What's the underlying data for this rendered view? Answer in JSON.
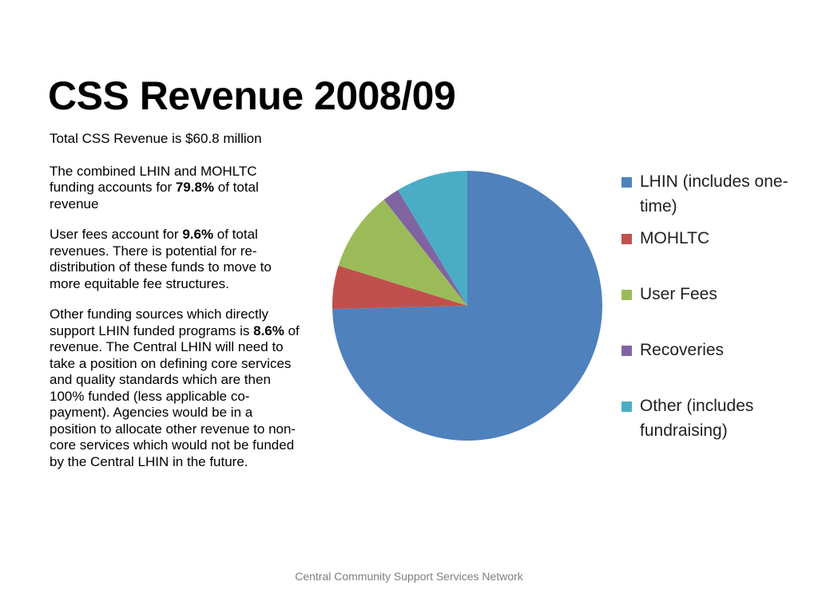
{
  "slide": {
    "title": "CSS Revenue 2008/09",
    "paragraphs": [
      [
        {
          "t": "Total CSS Revenue is $60.8 million",
          "b": false
        }
      ],
      [
        {
          "t": "The combined LHIN and MOHLTC funding accounts for ",
          "b": false
        },
        {
          "t": "79.8%",
          "b": true
        },
        {
          "t": " of total revenue",
          "b": false
        }
      ],
      [
        {
          "t": "User fees account for ",
          "b": false
        },
        {
          "t": "9.6%",
          "b": true
        },
        {
          "t": " of total revenues.  There is potential for re-distribution of these funds to move to more equitable fee structures.",
          "b": false
        }
      ],
      [
        {
          "t": "Other funding sources which directly support LHIN funded programs is ",
          "b": false
        },
        {
          "t": "8.6%",
          "b": true
        },
        {
          "t": " of revenue.  The Central LHIN will need to take a position on defining core services and  quality standards which are then 100% funded (less applicable co-payment).   Agencies would be in a position to allocate other revenue to non-core services which would not be funded by the Central LHIN in the future.",
          "b": false
        }
      ]
    ],
    "footer": "Central Community Support Services Network"
  },
  "chart_data": {
    "type": "pie",
    "title": "",
    "legend_position": "right",
    "start_angle_deg": 0,
    "direction": "clockwise",
    "slices": [
      {
        "label": "LHIN (includes one-time)",
        "value": 74.6,
        "color": "#4F81BD"
      },
      {
        "label": "MOHLTC",
        "value": 5.2,
        "color": "#C0504D"
      },
      {
        "label": "User Fees",
        "value": 9.6,
        "color": "#9BBB59"
      },
      {
        "label": "Recoveries",
        "value": 2.0,
        "color": "#8064A2"
      },
      {
        "label": "Other (includes fundraising)",
        "value": 8.6,
        "color": "#4BACC6"
      }
    ]
  }
}
